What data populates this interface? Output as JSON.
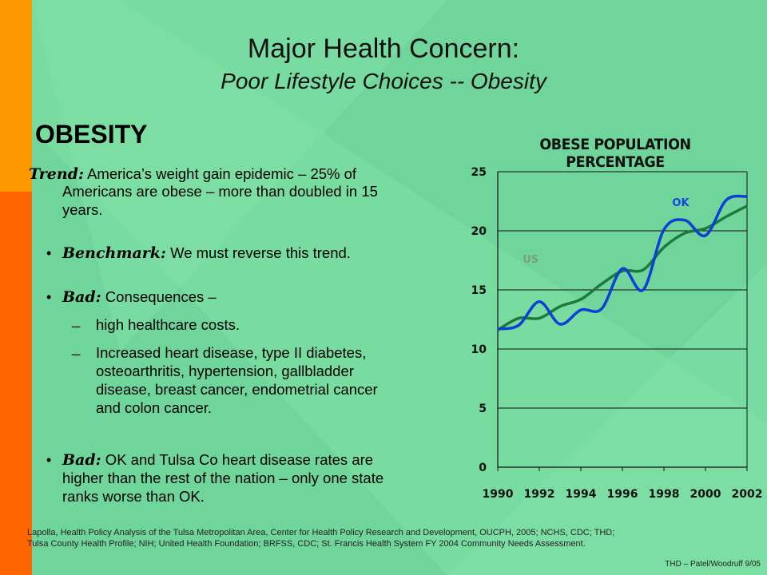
{
  "slide": {
    "title": "Major Health Concern:",
    "subtitle": "Poor Lifestyle Choices -- Obesity",
    "heading": "OBESITY",
    "bullets": [
      {
        "label": "Trend:",
        "text": " America’s weight gain epidemic – 25% of",
        "text2": "Americans are obese – more than doubled in 15",
        "text3": "years."
      },
      {
        "label": "Benchmark:",
        "text": " We must reverse this trend."
      },
      {
        "label": "Bad:",
        "text": " Consequences –"
      },
      {
        "label": "Bad:",
        "text": " OK and Tulsa Co heart disease rates are",
        "text2": "higher than the rest of the nation – only one state",
        "text3": "ranks worse than OK."
      }
    ],
    "sub_bullets": [
      {
        "dash": "–",
        "lines": [
          "high healthcare costs."
        ]
      },
      {
        "dash": "–",
        "lines": [
          "Increased heart disease, type II diabetes,",
          "osteoarthritis, hypertension, gallbladder",
          "disease, breast cancer, endometrial cancer",
          "and colon cancer."
        ]
      }
    ],
    "footer_lines": [
      "Lapolla, Health Policy Analysis of the Tulsa Metropolitan Area, Center for Health Policy Research and Development, OUCPH, 2005; NCHS, CDC; THD;",
      "Tulsa County Health Profile; NIH; United Health Foundation; BRFSS, CDC; St. Francis Health System FY 2004 Community Needs Assessment."
    ],
    "credit": "THD – Patel/Woodruff 9/05"
  },
  "colors": {
    "background_green": "#78dba0",
    "diamond_green": "#6fd59a",
    "stripe_orange": "#ff9900",
    "stripe_red": "#ff6600",
    "us_line": "#1f7a3a",
    "ok_line": "#0b3fd6",
    "ok_label": "#1a44e0",
    "us_label": "#7ca07c"
  },
  "chart_data": {
    "type": "line",
    "title": "OBESE POPULATION PERCENTAGE",
    "x": [
      1990,
      1991,
      1992,
      1993,
      1994,
      1995,
      1996,
      1997,
      1998,
      1999,
      2000,
      2001,
      2002
    ],
    "x_tick_labels": [
      "1990",
      "1992",
      "1994",
      "1996",
      "1998",
      "2000",
      "2002"
    ],
    "y_tick_labels": [
      "0",
      "5",
      "10",
      "15",
      "20",
      "25"
    ],
    "ylim": [
      0,
      25
    ],
    "xlim": [
      1990,
      2002
    ],
    "grid": true,
    "series": [
      {
        "name": "US",
        "values": [
          11.6,
          12.6,
          12.6,
          13.6,
          14.2,
          15.5,
          16.6,
          16.7,
          18.6,
          19.8,
          20.2,
          21.2,
          22.1
        ]
      },
      {
        "name": "OK",
        "values": [
          11.7,
          12.0,
          14.0,
          12.1,
          13.3,
          13.4,
          16.8,
          15.0,
          20.1,
          20.9,
          19.6,
          22.6,
          22.9
        ]
      }
    ]
  }
}
